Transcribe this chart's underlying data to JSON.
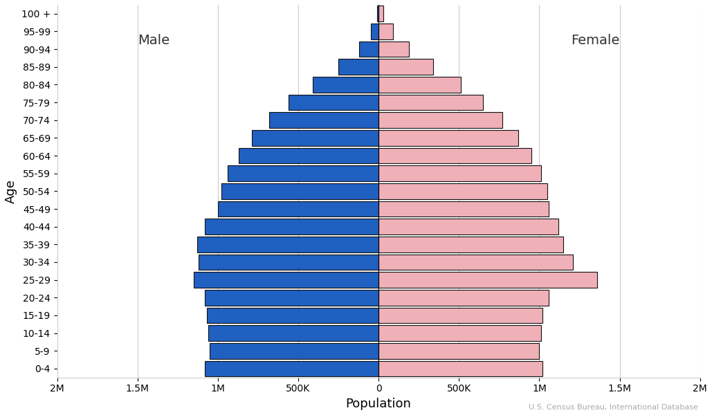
{
  "xlabel": "Population",
  "ylabel": "Age",
  "source": "U.S. Census Bureau, International Database",
  "male_label": "Male",
  "female_label": "Female",
  "age_groups": [
    "0-4",
    "5-9",
    "10-14",
    "15-19",
    "20-24",
    "25-29",
    "30-34",
    "35-39",
    "40-44",
    "45-49",
    "50-54",
    "55-59",
    "60-64",
    "65-69",
    "70-74",
    "75-79",
    "80-84",
    "85-89",
    "90-94",
    "95-99",
    "100 +"
  ],
  "male": [
    1080000,
    1050000,
    1060000,
    1070000,
    1080000,
    1150000,
    1120000,
    1130000,
    1080000,
    1000000,
    980000,
    940000,
    870000,
    790000,
    680000,
    560000,
    410000,
    250000,
    120000,
    50000,
    10000
  ],
  "female": [
    1020000,
    1000000,
    1010000,
    1020000,
    1060000,
    1360000,
    1210000,
    1150000,
    1120000,
    1060000,
    1050000,
    1010000,
    950000,
    870000,
    770000,
    650000,
    510000,
    340000,
    190000,
    90000,
    30000
  ],
  "male_color": "#2060c0",
  "female_color": "#f0b0b8",
  "bar_edge_color": "#111111",
  "bar_edge_width": 0.8,
  "background_color": "#ffffff",
  "grid_color": "#cccccc",
  "xlim": [
    -2000000,
    2000000
  ],
  "tick_values": [
    -2000000,
    -1500000,
    -1000000,
    -500000,
    0,
    500000,
    1000000,
    1500000,
    2000000
  ],
  "tick_labels": [
    "2M",
    "1.5M",
    "1M",
    "500K",
    "0",
    "500K",
    "1M",
    "1.5M",
    "2M"
  ],
  "figsize": [
    10.29,
    6.0
  ],
  "dpi": 100
}
